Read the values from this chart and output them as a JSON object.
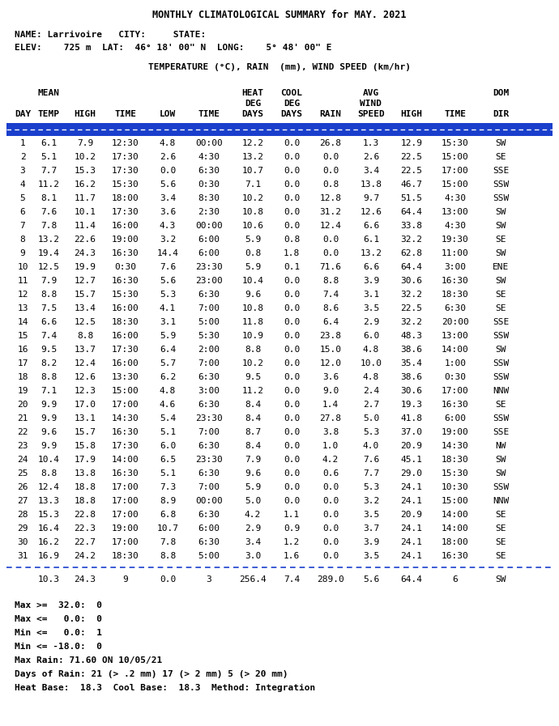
{
  "title": "MONTHLY CLIMATOLOGICAL SUMMARY for MAY. 2021",
  "name_line": "NAME: Larrivoire   CITY:     STATE:",
  "elev_line": "ELEV:    725 m  LAT:  46° 18' 00\" N  LONG:    5° 48' 00\" E",
  "units_line": "TEMPERATURE (°C), RAIN  (mm), WIND SPEED (km/hr)",
  "hdr1": [
    "",
    "MEAN",
    "",
    "",
    "",
    "",
    "HEAT",
    "COOL",
    "",
    "AVG",
    "",
    "",
    "DOM"
  ],
  "hdr2": [
    "",
    "",
    "",
    "",
    "",
    "",
    "DEG",
    "DEG",
    "",
    "WIND",
    "",
    "",
    ""
  ],
  "hdr3": [
    "DAY",
    "TEMP",
    "HIGH",
    "TIME",
    "LOW",
    "TIME",
    "DAYS",
    "DAYS",
    "RAIN",
    "SPEED",
    "HIGH",
    "TIME",
    "DIR"
  ],
  "rows": [
    [
      "1",
      "6.1",
      "7.9",
      "12:30",
      "4.8",
      "00:00",
      "12.2",
      "0.0",
      "26.8",
      "1.3",
      "12.9",
      "15:30",
      "SW"
    ],
    [
      "2",
      "5.1",
      "10.2",
      "17:30",
      "2.6",
      "4:30",
      "13.2",
      "0.0",
      "0.0",
      "2.6",
      "22.5",
      "15:00",
      "SE"
    ],
    [
      "3",
      "7.7",
      "15.3",
      "17:30",
      "0.0",
      "6:30",
      "10.7",
      "0.0",
      "0.0",
      "3.4",
      "22.5",
      "17:00",
      "SSE"
    ],
    [
      "4",
      "11.2",
      "16.2",
      "15:30",
      "5.6",
      "0:30",
      "7.1",
      "0.0",
      "0.8",
      "13.8",
      "46.7",
      "15:00",
      "SSW"
    ],
    [
      "5",
      "8.1",
      "11.7",
      "18:00",
      "3.4",
      "8:30",
      "10.2",
      "0.0",
      "12.8",
      "9.7",
      "51.5",
      "4:30",
      "SSW"
    ],
    [
      "6",
      "7.6",
      "10.1",
      "17:30",
      "3.6",
      "2:30",
      "10.8",
      "0.0",
      "31.2",
      "12.6",
      "64.4",
      "13:00",
      "SW"
    ],
    [
      "7",
      "7.8",
      "11.4",
      "16:00",
      "4.3",
      "00:00",
      "10.6",
      "0.0",
      "12.4",
      "6.6",
      "33.8",
      "4:30",
      "SW"
    ],
    [
      "8",
      "13.2",
      "22.6",
      "19:00",
      "3.2",
      "6:00",
      "5.9",
      "0.8",
      "0.0",
      "6.1",
      "32.2",
      "19:30",
      "SE"
    ],
    [
      "9",
      "19.4",
      "24.3",
      "16:30",
      "14.4",
      "6:00",
      "0.8",
      "1.8",
      "0.0",
      "13.2",
      "62.8",
      "11:00",
      "SW"
    ],
    [
      "10",
      "12.5",
      "19.9",
      "0:30",
      "7.6",
      "23:30",
      "5.9",
      "0.1",
      "71.6",
      "6.6",
      "64.4",
      "3:00",
      "ENE"
    ],
    [
      "11",
      "7.9",
      "12.7",
      "16:30",
      "5.6",
      "23:00",
      "10.4",
      "0.0",
      "8.8",
      "3.9",
      "30.6",
      "16:30",
      "SW"
    ],
    [
      "12",
      "8.8",
      "15.7",
      "15:30",
      "5.3",
      "6:30",
      "9.6",
      "0.0",
      "7.4",
      "3.1",
      "32.2",
      "18:30",
      "SE"
    ],
    [
      "13",
      "7.5",
      "13.4",
      "16:00",
      "4.1",
      "7:00",
      "10.8",
      "0.0",
      "8.6",
      "3.5",
      "22.5",
      "6:30",
      "SE"
    ],
    [
      "14",
      "6.6",
      "12.5",
      "18:30",
      "3.1",
      "5:00",
      "11.8",
      "0.0",
      "6.4",
      "2.9",
      "32.2",
      "20:00",
      "SSE"
    ],
    [
      "15",
      "7.4",
      "8.8",
      "16:00",
      "5.9",
      "5:30",
      "10.9",
      "0.0",
      "23.8",
      "6.0",
      "48.3",
      "13:00",
      "SSW"
    ],
    [
      "16",
      "9.5",
      "13.7",
      "17:30",
      "6.4",
      "2:00",
      "8.8",
      "0.0",
      "15.0",
      "4.8",
      "38.6",
      "14:00",
      "SW"
    ],
    [
      "17",
      "8.2",
      "12.4",
      "16:00",
      "5.7",
      "7:00",
      "10.2",
      "0.0",
      "12.0",
      "10.0",
      "35.4",
      "1:00",
      "SSW"
    ],
    [
      "18",
      "8.8",
      "12.6",
      "13:30",
      "6.2",
      "6:30",
      "9.5",
      "0.0",
      "3.6",
      "4.8",
      "38.6",
      "0:30",
      "SSW"
    ],
    [
      "19",
      "7.1",
      "12.3",
      "15:00",
      "4.8",
      "3:00",
      "11.2",
      "0.0",
      "9.0",
      "2.4",
      "30.6",
      "17:00",
      "NNW"
    ],
    [
      "20",
      "9.9",
      "17.0",
      "17:00",
      "4.6",
      "6:30",
      "8.4",
      "0.0",
      "1.4",
      "2.7",
      "19.3",
      "16:30",
      "SE"
    ],
    [
      "21",
      "9.9",
      "13.1",
      "14:30",
      "5.4",
      "23:30",
      "8.4",
      "0.0",
      "27.8",
      "5.0",
      "41.8",
      "6:00",
      "SSW"
    ],
    [
      "22",
      "9.6",
      "15.7",
      "16:30",
      "5.1",
      "7:00",
      "8.7",
      "0.0",
      "3.8",
      "5.3",
      "37.0",
      "19:00",
      "SSE"
    ],
    [
      "23",
      "9.9",
      "15.8",
      "17:30",
      "6.0",
      "6:30",
      "8.4",
      "0.0",
      "1.0",
      "4.0",
      "20.9",
      "14:30",
      "NW"
    ],
    [
      "24",
      "10.4",
      "17.9",
      "14:00",
      "6.5",
      "23:30",
      "7.9",
      "0.0",
      "4.2",
      "7.6",
      "45.1",
      "18:30",
      "SW"
    ],
    [
      "25",
      "8.8",
      "13.8",
      "16:30",
      "5.1",
      "6:30",
      "9.6",
      "0.0",
      "0.6",
      "7.7",
      "29.0",
      "15:30",
      "SW"
    ],
    [
      "26",
      "12.4",
      "18.8",
      "17:00",
      "7.3",
      "7:00",
      "5.9",
      "0.0",
      "0.0",
      "5.3",
      "24.1",
      "10:30",
      "SSW"
    ],
    [
      "27",
      "13.3",
      "18.8",
      "17:00",
      "8.9",
      "00:00",
      "5.0",
      "0.0",
      "0.0",
      "3.2",
      "24.1",
      "15:00",
      "NNW"
    ],
    [
      "28",
      "15.3",
      "22.8",
      "17:00",
      "6.8",
      "6:30",
      "4.2",
      "1.1",
      "0.0",
      "3.5",
      "20.9",
      "14:00",
      "SE"
    ],
    [
      "29",
      "16.4",
      "22.3",
      "19:00",
      "10.7",
      "6:00",
      "2.9",
      "0.9",
      "0.0",
      "3.7",
      "24.1",
      "14:00",
      "SE"
    ],
    [
      "30",
      "16.2",
      "22.7",
      "17:00",
      "7.8",
      "6:30",
      "3.4",
      "1.2",
      "0.0",
      "3.9",
      "24.1",
      "18:00",
      "SE"
    ],
    [
      "31",
      "16.9",
      "24.2",
      "18:30",
      "8.8",
      "5:00",
      "3.0",
      "1.6",
      "0.0",
      "3.5",
      "24.1",
      "16:30",
      "SE"
    ]
  ],
  "summary": [
    "",
    "10.3",
    "24.3",
    "9",
    "0.0",
    "3",
    "256.4",
    "7.4",
    "289.0",
    "5.6",
    "64.4",
    "6",
    "SW"
  ],
  "footer_lines": [
    "Max >=  32.0:  0",
    "Max <=   0.0:  0",
    "Min <=   0.0:  1",
    "Min <= -18.0:  0",
    "Max Rain: 71.60 ON 10/05/21",
    "Days of Rain: 21 (> .2 mm) 17 (> 2 mm) 5 (> 20 mm)",
    "Heat Base:  18.3  Cool Base:  18.3  Method: Integration"
  ],
  "bg_color": "#ffffff",
  "text_color": "#000000",
  "blue_color": "#1a3fcc",
  "fig_width": 6.9,
  "fig_height": 8.97,
  "dpi": 100
}
